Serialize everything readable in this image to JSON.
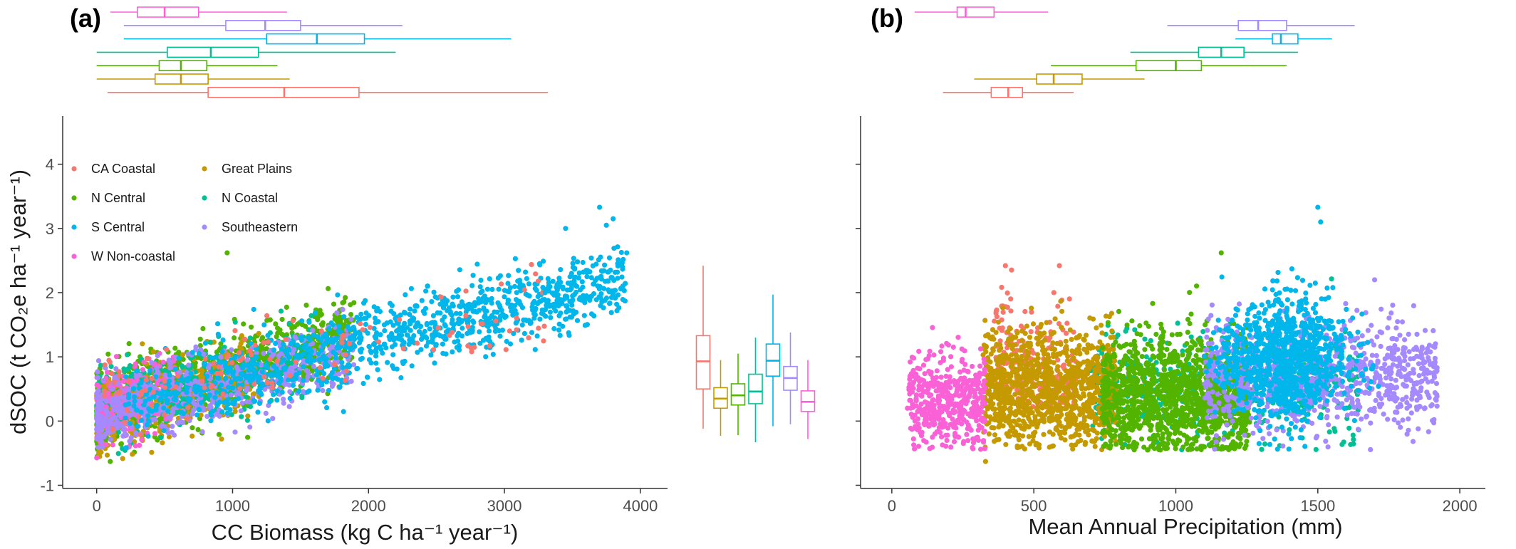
{
  "panel_labels": {
    "a": "(a)",
    "b": "(b)"
  },
  "region_colors": {
    "CA Coastal": "#F8766D",
    "Great Plains": "#C49A00",
    "N Central": "#53B400",
    "N Coastal": "#00C094",
    "S Central": "#00B6EB",
    "Southeastern": "#A58AFF",
    "W Non-coastal": "#FB61D7"
  },
  "legend": {
    "items": [
      "CA Coastal",
      "Great Plains",
      "N Central",
      "N Coastal",
      "S Central",
      "Southeastern",
      "W Non-coastal"
    ],
    "position": "top-left inside panel (a)"
  },
  "chart_data": [
    {
      "type": "scatter",
      "panel": "(a)",
      "title": "",
      "xlabel": "CC Biomass (kg C ha⁻¹ year⁻¹)",
      "ylabel": "dSOC (t CO₂e ha⁻¹ year⁻¹)",
      "xlim": [
        -250,
        4200
      ],
      "ylim": [
        -1.05,
        4.75
      ],
      "x_ticks": [
        0,
        1000,
        2000,
        3000,
        4000
      ],
      "y_ticks": [
        -1,
        0,
        1,
        2,
        3,
        4
      ],
      "grid": false,
      "series": [
        {
          "name": "CA Coastal",
          "x_range": [
            50,
            3300
          ],
          "y_center_at_x0": 0.35,
          "slope_per_1000": 0.45
        },
        {
          "name": "N Central",
          "x_range": [
            0,
            1900
          ],
          "y_center_at_x0": 0.15,
          "slope_per_1000": 0.65
        },
        {
          "name": "S Central",
          "x_range": [
            200,
            3900
          ],
          "y_center_at_x0": 0.1,
          "slope_per_1000": 0.55
        },
        {
          "name": "W Non-coastal",
          "x_range": [
            0,
            600
          ],
          "y_center_at_x0": 0.15,
          "slope_per_1000": 0.5
        },
        {
          "name": "Great Plains",
          "x_range": [
            0,
            1200
          ],
          "y_center_at_x0": 0.1,
          "slope_per_1000": 0.5
        },
        {
          "name": "N Coastal",
          "x_range": [
            0,
            1600
          ],
          "y_center_at_x0": 0.15,
          "slope_per_1000": 0.55
        },
        {
          "name": "Southeastern",
          "x_range": [
            0,
            1900
          ],
          "y_center_at_x0": 0.1,
          "slope_per_1000": 0.5
        }
      ],
      "highlight_points": [
        {
          "x": 3700,
          "y": 3.33
        },
        {
          "x": 3800,
          "y": 3.15
        },
        {
          "x": 3750,
          "y": 3.05
        },
        {
          "x": 3900,
          "y": 2.62
        },
        {
          "x": 3450,
          "y": 3.0
        },
        {
          "x": 960,
          "y": 2.62
        },
        {
          "x": 3300,
          "y": 2.0
        },
        {
          "x": 100,
          "y": -0.63
        }
      ],
      "marginal_x_boxplots": [
        {
          "name": "W Non-coastal",
          "whisker_low": 100,
          "q1": 300,
          "median": 500,
          "q3": 750,
          "whisker_high": 1400
        },
        {
          "name": "Southeastern",
          "whisker_low": 200,
          "q1": 950,
          "median": 1240,
          "q3": 1500,
          "whisker_high": 2250
        },
        {
          "name": "S Central",
          "whisker_low": 200,
          "q1": 1250,
          "median": 1620,
          "q3": 1970,
          "whisker_high": 3050
        },
        {
          "name": "N Coastal",
          "whisker_low": 0,
          "q1": 520,
          "median": 840,
          "q3": 1190,
          "whisker_high": 2200
        },
        {
          "name": "N Central",
          "whisker_low": 0,
          "q1": 460,
          "median": 620,
          "q3": 810,
          "whisker_high": 1330
        },
        {
          "name": "Great Plains",
          "whisker_low": 0,
          "q1": 430,
          "median": 620,
          "q3": 820,
          "whisker_high": 1420
        },
        {
          "name": "CA Coastal",
          "whisker_low": 80,
          "q1": 820,
          "median": 1380,
          "q3": 1930,
          "whisker_high": 3320
        }
      ],
      "marginal_y_boxplots": [
        {
          "name": "CA Coastal",
          "whisker_low": -0.12,
          "q1": 0.5,
          "median": 0.93,
          "q3": 1.33,
          "whisker_high": 2.42
        },
        {
          "name": "Great Plains",
          "whisker_low": -0.23,
          "q1": 0.2,
          "median": 0.35,
          "q3": 0.52,
          "whisker_high": 0.95
        },
        {
          "name": "N Central",
          "whisker_low": -0.22,
          "q1": 0.25,
          "median": 0.4,
          "q3": 0.58,
          "whisker_high": 1.05
        },
        {
          "name": "N Coastal",
          "whisker_low": -0.33,
          "q1": 0.27,
          "median": 0.46,
          "q3": 0.73,
          "whisker_high": 1.3
        },
        {
          "name": "S Central",
          "whisker_low": -0.08,
          "q1": 0.7,
          "median": 0.94,
          "q3": 1.2,
          "whisker_high": 1.97
        },
        {
          "name": "Southeastern",
          "whisker_low": -0.05,
          "q1": 0.48,
          "median": 0.67,
          "q3": 0.85,
          "whisker_high": 1.38
        },
        {
          "name": "W Non-coastal",
          "whisker_low": -0.28,
          "q1": 0.15,
          "median": 0.3,
          "q3": 0.47,
          "whisker_high": 0.95
        }
      ]
    },
    {
      "type": "scatter",
      "panel": "(b)",
      "title": "",
      "xlabel": "Mean Annual Precipitation (mm)",
      "ylabel": "",
      "xlim": [
        -110,
        2090
      ],
      "ylim": [
        -1.05,
        4.75
      ],
      "x_ticks": [
        0,
        500,
        1000,
        1500,
        2000
      ],
      "grid": false,
      "series": [
        {
          "name": "W Non-coastal",
          "x_range": [
            60,
            330
          ],
          "y_center": 0.3,
          "y_spread": 0.35
        },
        {
          "name": "CA Coastal",
          "x_range": [
            360,
            650
          ],
          "y_center": 0.9,
          "y_spread": 0.6
        },
        {
          "name": "Great Plains",
          "x_range": [
            320,
            790
          ],
          "y_center": 0.5,
          "y_spread": 0.45
        },
        {
          "name": "N Central",
          "x_range": [
            740,
            1260
          ],
          "y_center": 0.4,
          "y_spread": 0.45
        },
        {
          "name": "N Coastal",
          "x_range": [
            700,
            1650
          ],
          "y_center": 0.5,
          "y_spread": 0.4
        },
        {
          "name": "S Central",
          "x_range": [
            1100,
            1800
          ],
          "y_center": 0.95,
          "y_spread": 0.55
        },
        {
          "name": "Southeastern",
          "x_range": [
            1100,
            1920
          ],
          "y_center": 0.7,
          "y_spread": 0.4
        }
      ],
      "highlight_points": [
        {
          "x": 1500,
          "y": 3.33
        },
        {
          "x": 1510,
          "y": 3.1
        },
        {
          "x": 1160,
          "y": 2.62
        },
        {
          "x": 400,
          "y": 2.42
        },
        {
          "x": 590,
          "y": 2.42
        },
        {
          "x": 1700,
          "y": 2.2
        },
        {
          "x": 1920,
          "y": 0.83
        },
        {
          "x": 55,
          "y": 0.2
        },
        {
          "x": 330,
          "y": -0.63
        }
      ],
      "marginal_x_boxplots": [
        {
          "name": "W Non-coastal",
          "whisker_low": 80,
          "q1": 230,
          "median": 260,
          "q3": 360,
          "whisker_high": 550
        },
        {
          "name": "Southeastern",
          "whisker_low": 970,
          "q1": 1220,
          "median": 1290,
          "q3": 1390,
          "whisker_high": 1630
        },
        {
          "name": "S Central",
          "whisker_low": 1210,
          "q1": 1340,
          "median": 1370,
          "q3": 1430,
          "whisker_high": 1550
        },
        {
          "name": "N Coastal",
          "whisker_low": 840,
          "q1": 1080,
          "median": 1160,
          "q3": 1240,
          "whisker_high": 1430
        },
        {
          "name": "N Central",
          "whisker_low": 560,
          "q1": 860,
          "median": 1000,
          "q3": 1090,
          "whisker_high": 1390
        },
        {
          "name": "Great Plains",
          "whisker_low": 290,
          "q1": 510,
          "median": 570,
          "q3": 670,
          "whisker_high": 890
        },
        {
          "name": "CA Coastal",
          "whisker_low": 180,
          "q1": 350,
          "median": 410,
          "q3": 460,
          "whisker_high": 640
        }
      ]
    }
  ]
}
